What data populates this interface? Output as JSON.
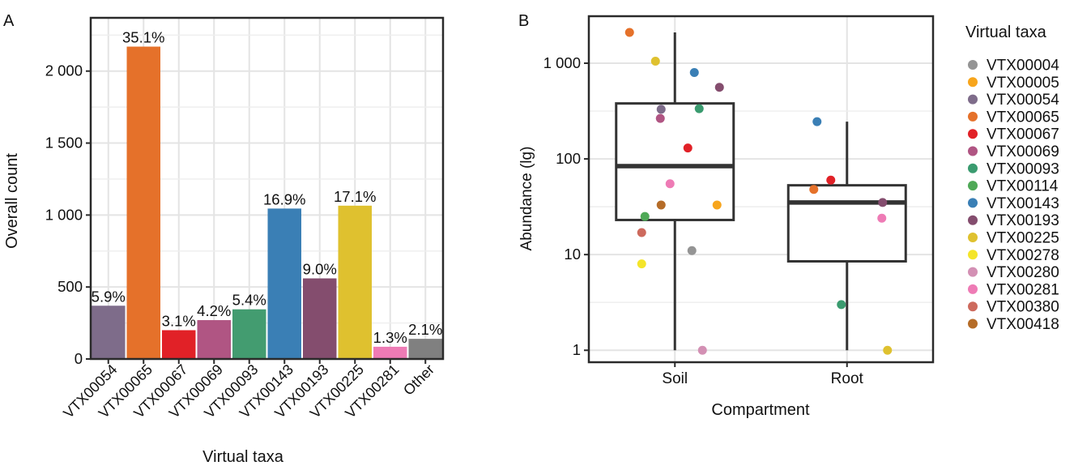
{
  "panel_a": {
    "letter": "A",
    "chart_data": {
      "type": "bar",
      "title": "",
      "xlabel": "Virtual taxa",
      "ylabel": "Overall count",
      "categories": [
        "VTX00054",
        "VTX00065",
        "VTX00067",
        "VTX00069",
        "VTX00093",
        "VTX00143",
        "VTX00193",
        "VTX00225",
        "VTX00281",
        "Other"
      ],
      "values": [
        370,
        2170,
        200,
        270,
        345,
        1045,
        560,
        1065,
        85,
        140
      ],
      "labels": [
        "5.9%",
        "35.1%",
        "3.1%",
        "4.2%",
        "5.4%",
        "16.9%",
        "9.0%",
        "17.1%",
        "1.3%",
        "2.1%"
      ],
      "colors": [
        "#7e6c8a",
        "#e5712a",
        "#e12127",
        "#b05583",
        "#439c70",
        "#3a7fb5",
        "#844d6e",
        "#dfc12f",
        "#ee7bb5",
        "#808080"
      ],
      "yticks": [
        0,
        500,
        1000,
        1500,
        2000
      ],
      "ytick_labels": [
        "0",
        "500",
        "1 000",
        "1 500",
        "2 000"
      ],
      "ylim": [
        0,
        2370
      ],
      "grid": true
    }
  },
  "panel_b": {
    "letter": "B",
    "chart_data": {
      "type": "box",
      "title": "",
      "xlabel": "Compartment",
      "ylabel": "Abundance (lg)",
      "yscale": "log10",
      "ylim": [
        0.75,
        3100
      ],
      "yticks": [
        1,
        10,
        100,
        1000
      ],
      "ytick_labels": [
        "1",
        "10",
        "100",
        "1 000"
      ],
      "categories": [
        "Soil",
        "Root"
      ],
      "boxes": [
        {
          "category": "Soil",
          "whisker_low": 1,
          "q1": 23,
          "median": 84,
          "q3": 380,
          "whisker_high": 2100
        },
        {
          "category": "Root",
          "whisker_low": 1,
          "q1": 8.5,
          "median": 35,
          "q3": 53,
          "whisker_high": 245
        }
      ],
      "points": [
        {
          "category": "Soil",
          "taxon": "VTX00065",
          "value": 2100
        },
        {
          "category": "Soil",
          "taxon": "VTX00225",
          "value": 1050
        },
        {
          "category": "Soil",
          "taxon": "VTX00143",
          "value": 800
        },
        {
          "category": "Soil",
          "taxon": "VTX00193",
          "value": 560
        },
        {
          "category": "Soil",
          "taxon": "VTX00054",
          "value": 330
        },
        {
          "category": "Soil",
          "taxon": "VTX00093",
          "value": 335
        },
        {
          "category": "Soil",
          "taxon": "VTX00069",
          "value": 265
        },
        {
          "category": "Soil",
          "taxon": "VTX00067",
          "value": 130
        },
        {
          "category": "Soil",
          "taxon": "VTX00281",
          "value": 55
        },
        {
          "category": "Soil",
          "taxon": "VTX00418",
          "value": 33
        },
        {
          "category": "Soil",
          "taxon": "VTX00005",
          "value": 33
        },
        {
          "category": "Soil",
          "taxon": "VTX00114",
          "value": 25
        },
        {
          "category": "Soil",
          "taxon": "VTX00380",
          "value": 17
        },
        {
          "category": "Soil",
          "taxon": "VTX00004",
          "value": 11
        },
        {
          "category": "Soil",
          "taxon": "VTX00278",
          "value": 8
        },
        {
          "category": "Soil",
          "taxon": "VTX00280",
          "value": 1
        },
        {
          "category": "Root",
          "taxon": "VTX00143",
          "value": 245
        },
        {
          "category": "Root",
          "taxon": "VTX00067",
          "value": 60
        },
        {
          "category": "Root",
          "taxon": "VTX00065",
          "value": 48
        },
        {
          "category": "Root",
          "taxon": "VTX00193",
          "value": 35
        },
        {
          "category": "Root",
          "taxon": "VTX00281",
          "value": 24
        },
        {
          "category": "Root",
          "taxon": "VTX00093",
          "value": 3
        },
        {
          "category": "Root",
          "taxon": "VTX00225",
          "value": 1
        }
      ],
      "legend": {
        "title": "Virtual taxa",
        "placement": "right",
        "entries": [
          {
            "name": "VTX00004",
            "color": "#949494"
          },
          {
            "name": "VTX00005",
            "color": "#f7a51c"
          },
          {
            "name": "VTX00054",
            "color": "#7e6c8a"
          },
          {
            "name": "VTX00065",
            "color": "#e5712a"
          },
          {
            "name": "VTX00067",
            "color": "#e12127"
          },
          {
            "name": "VTX00069",
            "color": "#b05583"
          },
          {
            "name": "VTX00093",
            "color": "#3a9b6f"
          },
          {
            "name": "VTX00114",
            "color": "#4fa957"
          },
          {
            "name": "VTX00143",
            "color": "#3a7fb5"
          },
          {
            "name": "VTX00193",
            "color": "#844d6e"
          },
          {
            "name": "VTX00225",
            "color": "#dfc12f"
          },
          {
            "name": "VTX00278",
            "color": "#f4e52a"
          },
          {
            "name": "VTX00280",
            "color": "#d390b4"
          },
          {
            "name": "VTX00281",
            "color": "#ee7bb5"
          },
          {
            "name": "VTX00380",
            "color": "#cd6a5d"
          },
          {
            "name": "VTX00418",
            "color": "#b56c28"
          }
        ]
      },
      "grid": true
    }
  }
}
